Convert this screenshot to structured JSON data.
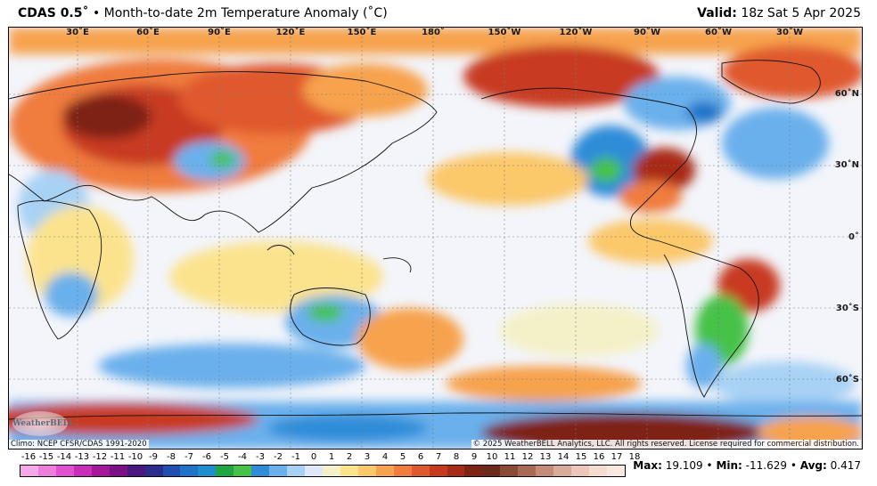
{
  "header": {
    "product": "CDAS 0.5˚",
    "description": "• Month-to-date 2m Temperature Anomaly (˚C)",
    "valid_label": "Valid:",
    "valid_time": "18z Sat 5 Apr 2025"
  },
  "map": {
    "lon_labels": [
      "30˚E",
      "60˚E",
      "90˚E",
      "120˚E",
      "150˚E",
      "180˚",
      "150˚W",
      "120˚W",
      "90˚W",
      "60˚W",
      "30˚W"
    ],
    "lat_labels": [
      "60˚N",
      "30˚N",
      "0˚",
      "30˚S",
      "60˚S"
    ]
  },
  "footer": {
    "climo": "Climo: NCEP CFSR/CDAS 1991-2020",
    "copyright": "© 2025 WeatherBELL Analytics, LLC. All rights reserved. License required for commercial distribution.",
    "logo_text": "WeatherBELL"
  },
  "colorbar": {
    "labels": [
      "-16",
      "-15",
      "-14",
      "-13",
      "-12",
      "-11",
      "-10",
      "-9",
      "-8",
      "-7",
      "-6",
      "-5",
      "-4",
      "-3",
      "-2",
      "-1",
      "0",
      "1",
      "2",
      "3",
      "4",
      "5",
      "6",
      "7",
      "8",
      "9",
      "10",
      "11",
      "12",
      "13",
      "14",
      "15",
      "16",
      "17",
      "18"
    ],
    "colors": [
      "#f7a8e8",
      "#ee7ddc",
      "#e050cf",
      "#c82cb8",
      "#a4169a",
      "#7c1087",
      "#4a167f",
      "#2c2c8c",
      "#1f4fb0",
      "#1f73c8",
      "#1d8fd0",
      "#1fa640",
      "#46c24a",
      "#2f8cd8",
      "#6ab0ec",
      "#a8d2f4",
      "#dde8fa",
      "#f4f1c8",
      "#fbe38e",
      "#fbc86a",
      "#f7a24e",
      "#f07c3e",
      "#e0582e",
      "#c83a20",
      "#a82a18",
      "#7e2414",
      "#6b2a1c",
      "#8a4a36",
      "#a86a54",
      "#c48c78",
      "#d8aa98",
      "#ecc6b8",
      "#f4dcd0",
      "#f8e8e0"
    ]
  },
  "stats": {
    "max_label": "Max:",
    "max_value": "19.109",
    "min_label": "Min:",
    "min_value": "-11.629",
    "avg_label": "Avg:",
    "avg_value": "0.417",
    "sep": "•"
  }
}
